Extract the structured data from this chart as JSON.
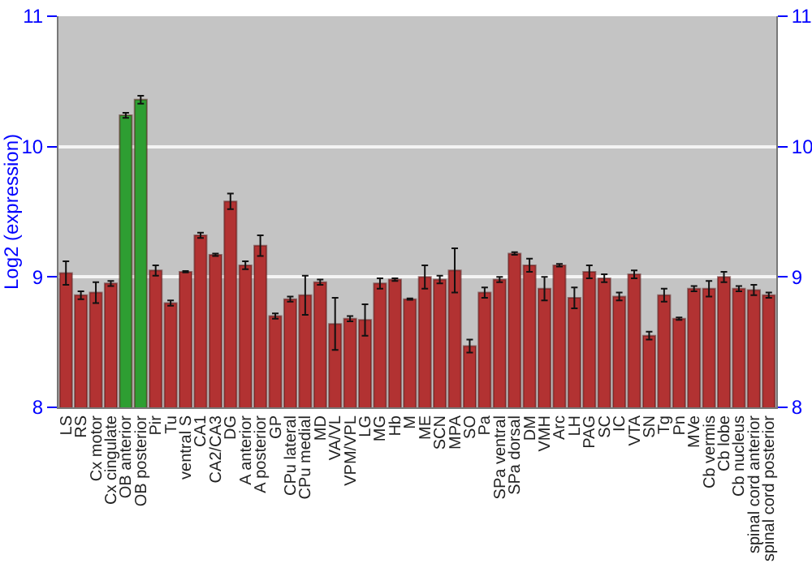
{
  "chart_data": {
    "type": "bar",
    "ylabel": "Log2 (expression)",
    "categories": [
      "LS",
      "RS",
      "Cx motor",
      "Cx cingulate",
      "OB anterior",
      "OB posterior",
      "Pir",
      "Tu",
      "ventral S",
      "CA1",
      "CA2/CA3",
      "DG",
      "A anterior",
      "A posterior",
      "GP",
      "CPu lateral",
      "CPu medial",
      "MD",
      "VA/VL",
      "VPM/VPL",
      "LG",
      "MG",
      "Hb",
      "M",
      "ME",
      "SCN",
      "MPA",
      "SO",
      "Pa",
      "SPa ventral",
      "SPa dorsal",
      "DM",
      "VMH",
      "Arc",
      "LH",
      "PAG",
      "SC",
      "IC",
      "VTA",
      "SN",
      "Tg",
      "Pn",
      "MVe",
      "Cb vermis",
      "Cb lobe",
      "Cb nucleus",
      "spinal cord anterior",
      "spinal cord posterior"
    ],
    "values": [
      9.03,
      8.86,
      8.88,
      8.95,
      10.24,
      10.36,
      9.05,
      8.8,
      9.04,
      9.32,
      9.17,
      9.58,
      9.09,
      9.24,
      8.7,
      8.83,
      8.86,
      8.96,
      8.64,
      8.68,
      8.67,
      8.95,
      8.98,
      8.83,
      9.0,
      8.98,
      9.05,
      8.47,
      8.88,
      8.98,
      9.18,
      9.09,
      8.91,
      9.09,
      8.84,
      9.04,
      8.99,
      8.85,
      9.02,
      8.55,
      8.86,
      8.68,
      8.91,
      8.91,
      9.0,
      8.91,
      8.9,
      8.86
    ],
    "errors": [
      0.09,
      0.03,
      0.08,
      0.02,
      0.02,
      0.03,
      0.04,
      0.02,
      0.005,
      0.02,
      0.01,
      0.06,
      0.03,
      0.08,
      0.02,
      0.02,
      0.15,
      0.02,
      0.2,
      0.02,
      0.12,
      0.04,
      0.01,
      0.005,
      0.09,
      0.03,
      0.17,
      0.05,
      0.04,
      0.02,
      0.01,
      0.05,
      0.09,
      0.01,
      0.08,
      0.05,
      0.03,
      0.03,
      0.03,
      0.03,
      0.05,
      0.01,
      0.02,
      0.06,
      0.04,
      0.02,
      0.04,
      0.02
    ],
    "colors": [
      "#b23232",
      "#b23232",
      "#b23232",
      "#b23232",
      "#2e9e32",
      "#2e9e32",
      "#b23232",
      "#b23232",
      "#b23232",
      "#b23232",
      "#b23232",
      "#b23232",
      "#b23232",
      "#b23232",
      "#b23232",
      "#b23232",
      "#b23232",
      "#b23232",
      "#b23232",
      "#b23232",
      "#b23232",
      "#b23232",
      "#b23232",
      "#b23232",
      "#b23232",
      "#b23232",
      "#b23232",
      "#b23232",
      "#b23232",
      "#b23232",
      "#b23232",
      "#b23232",
      "#b23232",
      "#b23232",
      "#b23232",
      "#b23232",
      "#b23232",
      "#b23232",
      "#b23232",
      "#b23232",
      "#b23232",
      "#b23232",
      "#b23232",
      "#b23232",
      "#b23232",
      "#b23232",
      "#b23232",
      "#b23232"
    ],
    "ylim": [
      8,
      11
    ],
    "yticks": [
      8,
      9,
      10,
      11
    ],
    "y2lim": [
      8,
      11
    ],
    "y2ticks": [
      8,
      9,
      10,
      11
    ],
    "grid": "y"
  }
}
